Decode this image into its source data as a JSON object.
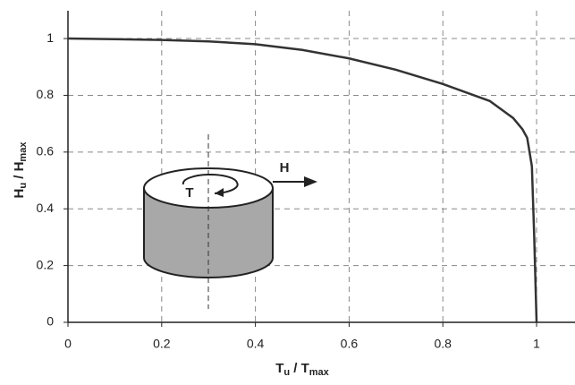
{
  "chart_data": {
    "type": "line",
    "xlabel": [
      "T",
      "u",
      " / T",
      "max"
    ],
    "ylabel": [
      "H",
      "u",
      " / H",
      "max"
    ],
    "annotations": [
      "T",
      "H"
    ],
    "x": [
      0,
      0.1,
      0.2,
      0.3,
      0.4,
      0.5,
      0.6,
      0.7,
      0.8,
      0.85,
      0.9,
      0.95,
      0.97,
      0.98,
      0.99,
      0.995,
      1.0
    ],
    "series": [
      {
        "color": "#333333",
        "values": [
          1,
          0.998,
          0.995,
          0.99,
          0.98,
          0.96,
          0.93,
          0.89,
          0.84,
          0.81,
          0.78,
          0.72,
          0.68,
          0.65,
          0.55,
          0.3,
          0
        ]
      }
    ],
    "xlim": [
      0,
      1.082
    ],
    "ylim": [
      0,
      1.098
    ],
    "xticks": [
      0,
      0.2,
      0.4,
      0.6,
      0.8,
      1
    ],
    "yticks": [
      0,
      0.2,
      0.4,
      0.6,
      0.8,
      1
    ],
    "grid": true
  }
}
